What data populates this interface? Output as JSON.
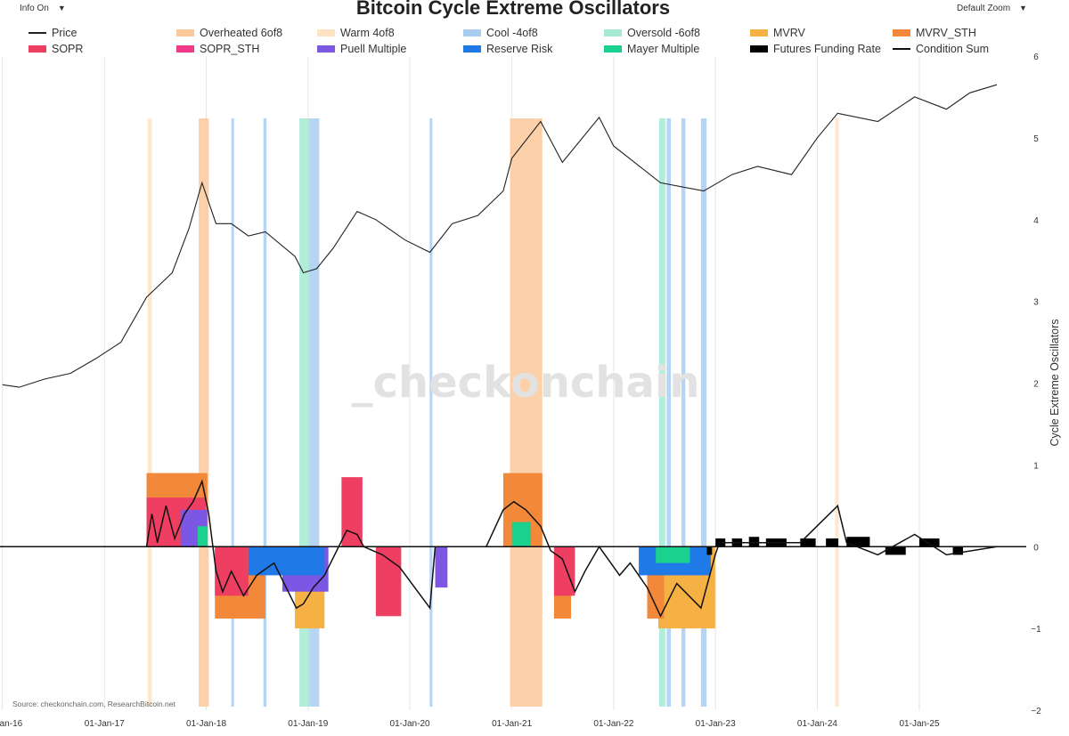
{
  "controls": {
    "info": {
      "label": "Info On"
    },
    "zoom": {
      "label": "Default Zoom"
    }
  },
  "source": "Source: checkonchain.com, ResearchBitcoin.net",
  "watermark": "_checkonchain",
  "legend": [
    {
      "label": "Price",
      "color": "#222222",
      "style": "line"
    },
    {
      "label": "Overheated 6of8",
      "color": "#fcc99a",
      "style": "box"
    },
    {
      "label": "Warm 4of8",
      "color": "#fde3c4",
      "style": "box"
    },
    {
      "label": "Cool -4of8",
      "color": "#a9ccf1",
      "style": "box"
    },
    {
      "label": "Oversold -6of8",
      "color": "#a5e9d3",
      "style": "box"
    },
    {
      "label": "MVRV",
      "color": "#f5b144",
      "style": "box"
    },
    {
      "label": "MVRV_STH",
      "color": "#f2883a",
      "style": "box"
    },
    {
      "label": "SOPR",
      "color": "#ee3f63",
      "style": "box"
    },
    {
      "label": "SOPR_STH",
      "color": "#ee3a88",
      "style": "box"
    },
    {
      "label": "Puell Multiple",
      "color": "#7c57e3",
      "style": "box"
    },
    {
      "label": "Reserve Risk",
      "color": "#1f7ae8",
      "style": "box"
    },
    {
      "label": "Mayer Multiple",
      "color": "#1bd18e",
      "style": "box"
    },
    {
      "label": "Futures Funding Rate",
      "color": "#000000",
      "style": "box"
    },
    {
      "label": "Condition Sum",
      "color": "#111111",
      "style": "line"
    }
  ],
  "chart_data": {
    "type": "area",
    "title": "Bitcoin Cycle Extreme Oscillators",
    "ylabel": "Cycle Extreme Oscillators",
    "ylim": [
      -2,
      6
    ],
    "yticks": [
      "6",
      "5",
      "4",
      "3",
      "2",
      "1",
      "0",
      "−1",
      "−2"
    ],
    "xlim": [
      "2016-01-01",
      "2025-11-15"
    ],
    "xticks": [
      "01-Jan-16",
      "01-Jan-17",
      "01-Jan-18",
      "01-Jan-19",
      "01-Jan-20",
      "01-Jan-21",
      "01-Jan-22",
      "01-Jan-23",
      "01-Jan-24",
      "01-Jan-25"
    ],
    "grid": "vertical",
    "legend_position": "top",
    "colors": {
      "MVRV": "#f5b144",
      "MVRV_STH": "#f2883a",
      "SOPR": "#ee3f63",
      "SOPR_STH": "#ee3a88",
      "Puell Multiple": "#7c57e3",
      "Reserve Risk": "#1f7ae8",
      "Mayer Multiple": "#1bd18e",
      "Futures Funding Rate": "#000000",
      "Condition Sum": "#111111",
      "Price": "#222222"
    },
    "price_series": [
      [
        "2016-01-01",
        1.98
      ],
      [
        "2016-03-01",
        1.95
      ],
      [
        "2016-06-01",
        2.05
      ],
      [
        "2016-09-01",
        2.12
      ],
      [
        "2016-12-01",
        2.3
      ],
      [
        "2017-03-01",
        2.5
      ],
      [
        "2017-06-01",
        3.05
      ],
      [
        "2017-09-01",
        3.35
      ],
      [
        "2017-11-01",
        3.9
      ],
      [
        "2017-12-17",
        4.45
      ],
      [
        "2018-02-05",
        3.95
      ],
      [
        "2018-04-01",
        3.95
      ],
      [
        "2018-06-01",
        3.8
      ],
      [
        "2018-08-01",
        3.85
      ],
      [
        "2018-11-15",
        3.55
      ],
      [
        "2018-12-15",
        3.35
      ],
      [
        "2019-02-01",
        3.4
      ],
      [
        "2019-04-01",
        3.65
      ],
      [
        "2019-06-26",
        4.1
      ],
      [
        "2019-09-01",
        4.0
      ],
      [
        "2019-12-15",
        3.75
      ],
      [
        "2020-03-13",
        3.6
      ],
      [
        "2020-06-01",
        3.95
      ],
      [
        "2020-09-01",
        4.05
      ],
      [
        "2020-12-01",
        4.35
      ],
      [
        "2021-01-01",
        4.75
      ],
      [
        "2021-04-14",
        5.2
      ],
      [
        "2021-07-01",
        4.7
      ],
      [
        "2021-11-10",
        5.25
      ],
      [
        "2022-01-01",
        4.9
      ],
      [
        "2022-06-18",
        4.45
      ],
      [
        "2022-11-20",
        4.35
      ],
      [
        "2023-03-01",
        4.55
      ],
      [
        "2023-06-01",
        4.65
      ],
      [
        "2023-10-01",
        4.55
      ],
      [
        "2024-01-01",
        5.0
      ],
      [
        "2024-03-14",
        5.3
      ],
      [
        "2024-08-05",
        5.2
      ],
      [
        "2024-12-15",
        5.5
      ],
      [
        "2025-04-08",
        5.35
      ],
      [
        "2025-07-01",
        5.55
      ],
      [
        "2025-10-06",
        5.65
      ]
    ],
    "condition_sum": [
      [
        "2016-01-01",
        0
      ],
      [
        "2017-06-01",
        0
      ],
      [
        "2017-06-20",
        0.4
      ],
      [
        "2017-07-10",
        0.05
      ],
      [
        "2017-08-10",
        0.5
      ],
      [
        "2017-09-10",
        0.1
      ],
      [
        "2017-10-15",
        0.4
      ],
      [
        "2017-11-15",
        0.55
      ],
      [
        "2017-12-17",
        0.8
      ],
      [
        "2018-01-10",
        0.4
      ],
      [
        "2018-02-05",
        -0.3
      ],
      [
        "2018-03-01",
        -0.55
      ],
      [
        "2018-04-01",
        -0.3
      ],
      [
        "2018-05-15",
        -0.6
      ],
      [
        "2018-07-01",
        -0.35
      ],
      [
        "2018-09-01",
        -0.2
      ],
      [
        "2018-11-20",
        -0.75
      ],
      [
        "2018-12-15",
        -0.7
      ],
      [
        "2019-01-20",
        -0.5
      ],
      [
        "2019-03-01",
        -0.35
      ],
      [
        "2019-05-20",
        0.2
      ],
      [
        "2019-06-26",
        0.15
      ],
      [
        "2019-07-20",
        0
      ],
      [
        "2019-09-25",
        -0.1
      ],
      [
        "2019-11-25",
        -0.25
      ],
      [
        "2020-03-13",
        -0.75
      ],
      [
        "2020-04-01",
        0
      ],
      [
        "2020-10-01",
        0
      ],
      [
        "2020-12-01",
        0.45
      ],
      [
        "2021-01-08",
        0.55
      ],
      [
        "2021-02-20",
        0.45
      ],
      [
        "2021-04-14",
        0.25
      ],
      [
        "2021-05-20",
        -0.05
      ],
      [
        "2021-07-01",
        -0.15
      ],
      [
        "2021-08-15",
        -0.55
      ],
      [
        "2021-09-20",
        -0.3
      ],
      [
        "2021-11-10",
        0
      ],
      [
        "2022-01-22",
        -0.35
      ],
      [
        "2022-03-01",
        -0.2
      ],
      [
        "2022-05-01",
        -0.5
      ],
      [
        "2022-06-18",
        -0.85
      ],
      [
        "2022-08-15",
        -0.45
      ],
      [
        "2022-11-10",
        -0.75
      ],
      [
        "2022-12-31",
        -0.1
      ],
      [
        "2023-01-15",
        0.05
      ],
      [
        "2023-06-01",
        0.05
      ],
      [
        "2023-11-01",
        0.05
      ],
      [
        "2024-03-14",
        0.5
      ],
      [
        "2024-04-15",
        0.05
      ],
      [
        "2024-08-05",
        -0.1
      ],
      [
        "2024-12-15",
        0.15
      ],
      [
        "2025-04-08",
        -0.1
      ],
      [
        "2025-10-06",
        0
      ]
    ],
    "stacked_bands": [
      {
        "name": "Mayer Multiple",
        "color": "#1bd18e",
        "intervals": [
          [
            "2017-12-01",
            "2018-01-05",
            0.25
          ],
          [
            "2021-01-01",
            "2021-03-10",
            0.3
          ],
          [
            "2022-06-01",
            "2022-10-01",
            -0.2
          ]
        ]
      },
      {
        "name": "Reserve Risk",
        "color": "#1f7ae8",
        "intervals": [
          [
            "2018-06-01",
            "2019-03-01",
            -0.35
          ],
          [
            "2022-04-01",
            "2022-12-15",
            -0.35
          ]
        ]
      },
      {
        "name": "Puell Multiple",
        "color": "#7c57e3",
        "intervals": [
          [
            "2017-10-01",
            "2018-01-05",
            0.45
          ],
          [
            "2018-10-01",
            "2019-03-15",
            -0.55
          ],
          [
            "2020-04-01",
            "2020-05-15",
            -0.5
          ]
        ]
      },
      {
        "name": "MVRV",
        "color": "#f5b144",
        "intervals": [
          [
            "2018-11-15",
            "2019-03-01",
            -1.0
          ],
          [
            "2022-06-10",
            "2022-12-31",
            -1.0
          ]
        ]
      },
      {
        "name": "MVRV_STH",
        "color": "#f2883a",
        "intervals": [
          [
            "2017-06-01",
            "2018-01-05",
            0.9
          ],
          [
            "2018-02-01",
            "2018-08-01",
            -0.88
          ],
          [
            "2020-12-01",
            "2021-04-20",
            0.9
          ],
          [
            "2021-06-01",
            "2021-08-01",
            -0.88
          ],
          [
            "2022-05-01",
            "2022-07-01",
            -0.88
          ]
        ]
      },
      {
        "name": "SOPR",
        "color": "#ee3f63",
        "intervals": [
          [
            "2017-06-01",
            "2017-12-31",
            0.6
          ],
          [
            "2018-02-01",
            "2018-06-01",
            -0.6
          ],
          [
            "2019-05-01",
            "2019-07-15",
            0.85
          ],
          [
            "2019-09-01",
            "2019-12-01",
            -0.85
          ],
          [
            "2021-06-01",
            "2021-08-15",
            -0.6
          ]
        ]
      }
    ],
    "highlight_bands": [
      {
        "class": "Overheated 6of8",
        "color": "#fcc99a",
        "ranges": [
          [
            "2017-12-05",
            "2018-01-10"
          ],
          [
            "2020-12-25",
            "2021-04-20"
          ]
        ]
      },
      {
        "class": "Warm 4of8",
        "color": "#fde3c4",
        "ranges": [
          [
            "2017-06-05",
            "2017-06-20"
          ],
          [
            "2024-03-05",
            "2024-03-18"
          ]
        ]
      },
      {
        "class": "Cool -4of8",
        "color": "#a9ccf1",
        "ranges": [
          [
            "2018-04-01",
            "2018-04-10"
          ],
          [
            "2018-07-25",
            "2018-08-05"
          ],
          [
            "2019-01-05",
            "2019-02-10"
          ],
          [
            "2020-03-12",
            "2020-03-22"
          ],
          [
            "2022-07-10",
            "2022-07-25"
          ],
          [
            "2022-09-01",
            "2022-09-15"
          ],
          [
            "2022-11-10",
            "2022-11-30"
          ]
        ]
      },
      {
        "class": "Oversold -6of8",
        "color": "#a5e9d3",
        "ranges": [
          [
            "2018-12-01",
            "2019-01-05"
          ],
          [
            "2022-06-13",
            "2022-07-05"
          ]
        ]
      }
    ],
    "funding_rate": [
      [
        "2022-12-01",
        -0.1
      ],
      [
        "2023-01-01",
        0.1
      ],
      [
        "2023-03-01",
        0.1
      ],
      [
        "2023-05-01",
        0.12
      ],
      [
        "2023-07-01",
        0.1
      ],
      [
        "2023-11-01",
        0.1
      ],
      [
        "2024-02-01",
        0.1
      ],
      [
        "2024-04-15",
        0.12
      ],
      [
        "2024-09-01",
        -0.1
      ],
      [
        "2025-01-01",
        0.1
      ],
      [
        "2025-05-01",
        -0.1
      ],
      [
        "2025-07-01",
        0.1
      ]
    ]
  }
}
